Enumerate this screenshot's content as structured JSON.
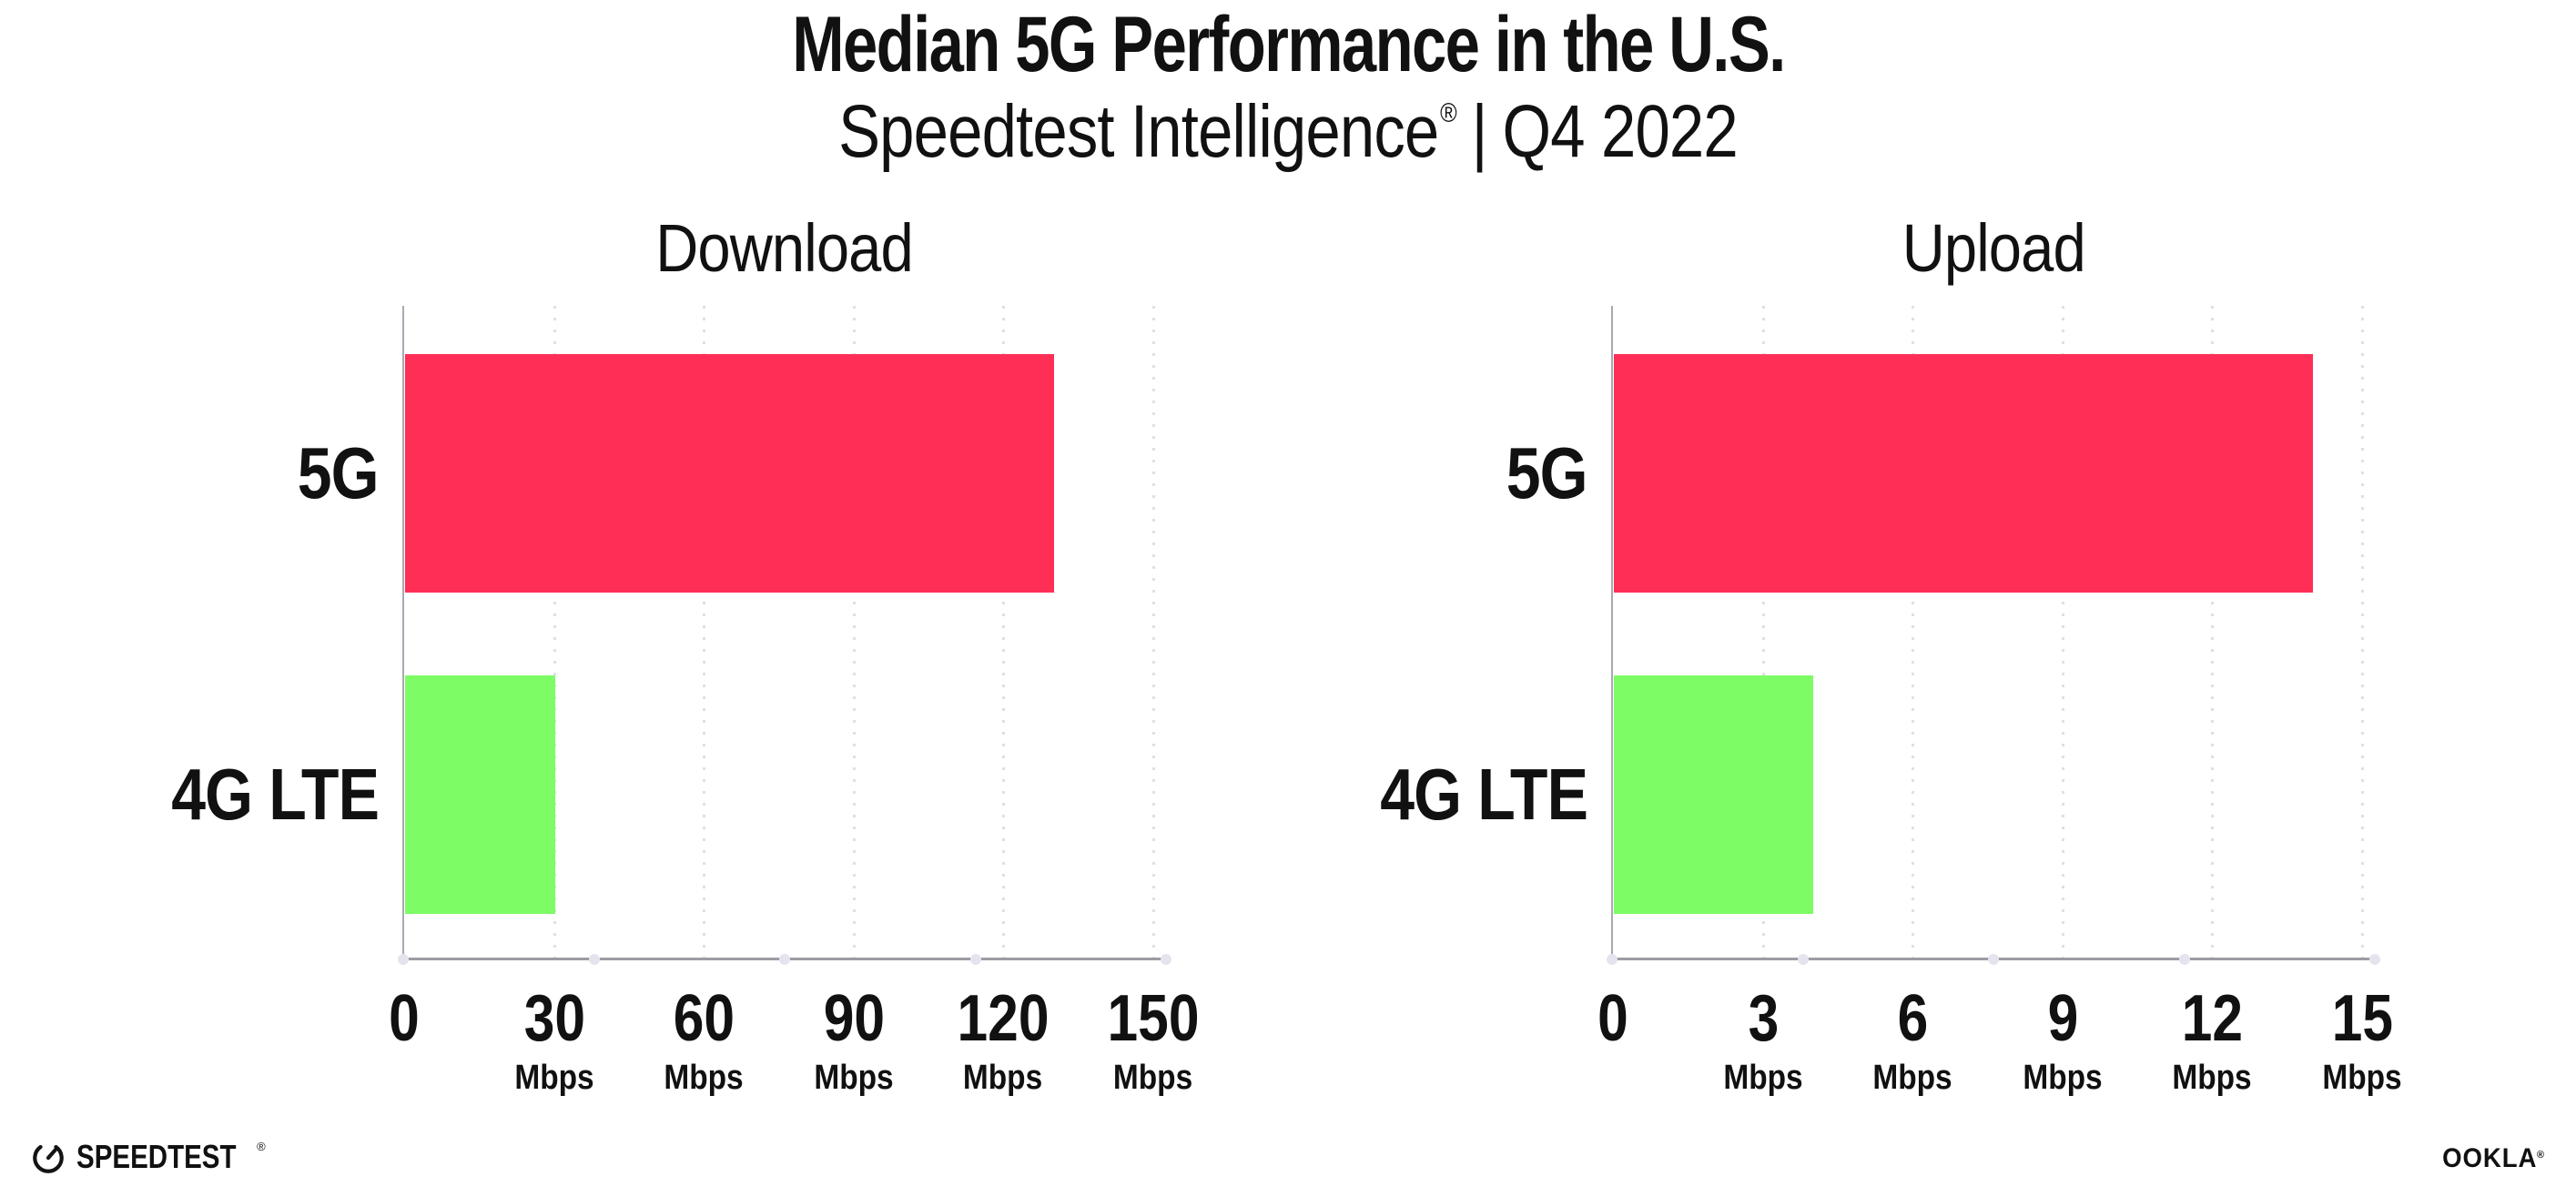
{
  "header": {
    "title": "Median 5G Performance in the U.S.",
    "brand": "Speedtest Intelligence",
    "registered": "®",
    "separator": "|",
    "period": "Q4 2022"
  },
  "chart_data": [
    {
      "type": "bar",
      "orientation": "horizontal",
      "title": "Download",
      "categories": [
        "5G",
        "4G LTE"
      ],
      "values": [
        130,
        30
      ],
      "unit": "Mbps",
      "xlim": [
        0,
        150
      ],
      "xticks": [
        0,
        30,
        60,
        90,
        120,
        150
      ],
      "bar_colors": [
        "#ff2e56",
        "#7dfc66"
      ],
      "grid": "dotted-vertical",
      "legend": "none"
    },
    {
      "type": "bar",
      "orientation": "horizontal",
      "title": "Upload",
      "categories": [
        "5G",
        "4G LTE"
      ],
      "values": [
        14,
        4
      ],
      "unit": "Mbps",
      "xlim": [
        0,
        15
      ],
      "xticks": [
        0,
        3,
        6,
        9,
        12,
        15
      ],
      "bar_colors": [
        "#ff2e56",
        "#7dfc66"
      ],
      "grid": "dotted-vertical",
      "legend": "none"
    }
  ],
  "colors": {
    "bar_5g": "#ff2e56",
    "bar_4g_lte": "#7dfc66",
    "axis": "#9c9ca4",
    "grid_dot": "#dfdfe9",
    "text": "#111111",
    "background": "#ffffff"
  },
  "footer": {
    "speedtest": "SPEEDTEST",
    "speedtest_mark": "®",
    "ookla": "OOKLA",
    "ookla_mark": "®"
  }
}
